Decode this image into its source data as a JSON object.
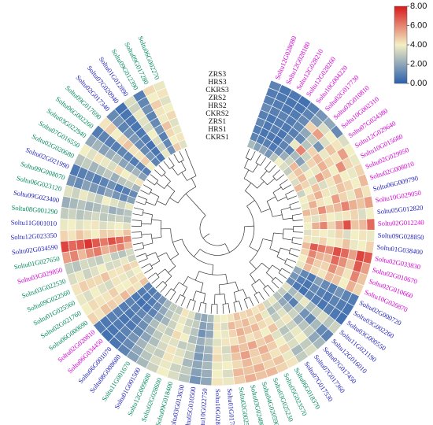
{
  "chart_data": {
    "type": "heatmap",
    "title": "",
    "layout": "circular",
    "samples": [
      "ZRS3",
      "HRS3",
      "CKRS3",
      "ZRS2",
      "HRS2",
      "CKRS2",
      "ZRS1",
      "HRS1",
      "CKRS1"
    ],
    "colorbar": {
      "range": [
        0,
        8
      ],
      "ticks": [
        "8.00",
        "6.00",
        "4.00",
        "2.00",
        "0.00"
      ],
      "colors": [
        "#2b5fad",
        "#f3efc4",
        "#d7191c"
      ]
    },
    "label_colors": {
      "magenta": "#d400d4",
      "blue": "#2222bb",
      "green": "#008a5c"
    },
    "genes": [
      {
        "name": "Soltu12G028080",
        "color": "magenta"
      },
      {
        "name": "Soltu12G028180",
        "color": "magenta"
      },
      {
        "name": "Soltu12G028210",
        "color": "magenta"
      },
      {
        "name": "Soltu12G028260",
        "color": "magenta"
      },
      {
        "name": "Soltu10G004220",
        "color": "magenta"
      },
      {
        "name": "Soltu02G017730",
        "color": "magenta"
      },
      {
        "name": "Soltu03G010810",
        "color": "magenta"
      },
      {
        "name": "Soltu10G002310",
        "color": "magenta"
      },
      {
        "name": "Soltu07G024380",
        "color": "magenta"
      },
      {
        "name": "Soltu12G029640",
        "color": "magenta"
      },
      {
        "name": "Soltu10G015680",
        "color": "magenta"
      },
      {
        "name": "Soltu02G029950",
        "color": "magenta"
      },
      {
        "name": "Soltu02G008010",
        "color": "magenta"
      },
      {
        "name": "Soltu06G009790",
        "color": "blue"
      },
      {
        "name": "Soltu10G029050",
        "color": "magenta"
      },
      {
        "name": "Soltu05G012820",
        "color": "blue"
      },
      {
        "name": "Soltu02G012240",
        "color": "magenta"
      },
      {
        "name": "Soltu09G028850",
        "color": "blue"
      },
      {
        "name": "Soltu01G038400",
        "color": "blue"
      },
      {
        "name": "Soltu02G033830",
        "color": "magenta"
      },
      {
        "name": "Soltu02G010670",
        "color": "magenta"
      },
      {
        "name": "Soltu02G010660",
        "color": "magenta"
      },
      {
        "name": "Soltu10G026870",
        "color": "magenta"
      },
      {
        "name": "Soltu02G000720",
        "color": "blue"
      },
      {
        "name": "Soltu03G002260",
        "color": "blue"
      },
      {
        "name": "Soltu03G000550",
        "color": "blue"
      },
      {
        "name": "Soltu11G021190",
        "color": "blue"
      },
      {
        "name": "Soltu12G016010",
        "color": "blue"
      },
      {
        "name": "Soltu07G017450",
        "color": "blue"
      },
      {
        "name": "Soltu07G017360",
        "color": "blue"
      },
      {
        "name": "Soltu07G017530",
        "color": "blue"
      },
      {
        "name": "Soltu06G018370",
        "color": "green"
      },
      {
        "name": "Soltu05G023570",
        "color": "green"
      },
      {
        "name": "Soltu03G025230",
        "color": "green"
      },
      {
        "name": "Soltu04G020590",
        "color": "green"
      },
      {
        "name": "Soltu03G024860",
        "color": "green"
      },
      {
        "name": "Soltu02G002540",
        "color": "green"
      },
      {
        "name": "Soltu01G017860",
        "color": "blue"
      },
      {
        "name": "Soltu10G028990",
        "color": "blue"
      },
      {
        "name": "Soltu10G022750",
        "color": "blue"
      },
      {
        "name": "Soltu05G010500",
        "color": "blue"
      },
      {
        "name": "Soltu03G013630",
        "color": "blue"
      },
      {
        "name": "Soltu09G018400",
        "color": "green"
      },
      {
        "name": "Soltu02G028600",
        "color": "green"
      },
      {
        "name": "Soltu12G009600",
        "color": "green"
      },
      {
        "name": "Soltu01G001500",
        "color": "blue"
      },
      {
        "name": "Soltu11G001670",
        "color": "green"
      },
      {
        "name": "Soltu08G008680",
        "color": "blue"
      },
      {
        "name": "Soltu06G001070",
        "color": "blue"
      },
      {
        "name": "Soltu06G034450",
        "color": "magenta"
      },
      {
        "name": "Soltu02G020810",
        "color": "magenta"
      },
      {
        "name": "Soltu06G000690",
        "color": "green"
      },
      {
        "name": "Soltu02G021760",
        "color": "green"
      },
      {
        "name": "Soltu01G025560",
        "color": "green"
      },
      {
        "name": "Soltu09G022560",
        "color": "green"
      },
      {
        "name": "Soltu03G022530",
        "color": "green"
      },
      {
        "name": "Soltu03G029850",
        "color": "magenta"
      },
      {
        "name": "Soltu01G027650",
        "color": "green"
      },
      {
        "name": "Soltu02G034590",
        "color": "blue"
      },
      {
        "name": "Soltu12G023350",
        "color": "blue"
      },
      {
        "name": "Soltu11G001010",
        "color": "blue"
      },
      {
        "name": "Soltu08G001290",
        "color": "green"
      },
      {
        "name": "Soltu09G023400",
        "color": "blue"
      },
      {
        "name": "Soltu06G023120",
        "color": "green"
      },
      {
        "name": "Soltu09G008070",
        "color": "green"
      },
      {
        "name": "Soltu02G021990",
        "color": "blue"
      },
      {
        "name": "Soltu02G020680",
        "color": "green"
      },
      {
        "name": "Soltu07G016550",
        "color": "green"
      },
      {
        "name": "Soltu03G022940",
        "color": "green"
      },
      {
        "name": "Soltu06G002260",
        "color": "green"
      },
      {
        "name": "Soltu09G017690",
        "color": "green"
      },
      {
        "name": "Soltu02G017340",
        "color": "blue"
      },
      {
        "name": "Soltu07G020940",
        "color": "blue"
      },
      {
        "name": "Soltu01G012890",
        "color": "blue"
      },
      {
        "name": "Soltu09G012390",
        "color": "green"
      },
      {
        "name": "Soltu09G017280",
        "color": "green"
      },
      {
        "name": "Soltu06G002270",
        "color": "green"
      }
    ],
    "values": [
      [
        1.0,
        0.8,
        0.9,
        1.2,
        0.9,
        1.1,
        0.8,
        1.0,
        2.5
      ],
      [
        0.6,
        0.7,
        0.8,
        0.9,
        0.6,
        0.7,
        0.6,
        0.8,
        1.8
      ],
      [
        0.7,
        0.6,
        0.7,
        1.0,
        0.8,
        0.9,
        0.7,
        0.9,
        2.0
      ],
      [
        0.5,
        0.6,
        0.8,
        0.8,
        0.7,
        0.6,
        0.5,
        0.7,
        1.5
      ],
      [
        0.9,
        1.0,
        1.2,
        1.1,
        0.9,
        1.3,
        1.0,
        1.2,
        2.8
      ],
      [
        1.5,
        1.8,
        4.5,
        2.0,
        1.2,
        3.8,
        1.0,
        2.2,
        4.0
      ],
      [
        2.0,
        3.5,
        5.5,
        3.0,
        2.8,
        6.0,
        2.5,
        3.2,
        3.5
      ],
      [
        1.2,
        4.0,
        3.5,
        1.5,
        4.5,
        3.2,
        1.8,
        5.0,
        3.0
      ],
      [
        3.5,
        4.2,
        4.8,
        3.8,
        5.0,
        4.5,
        3.2,
        4.8,
        4.2
      ],
      [
        4.0,
        5.5,
        4.2,
        4.5,
        5.2,
        3.8,
        4.0,
        5.0,
        3.5
      ],
      [
        3.8,
        4.5,
        5.8,
        4.0,
        4.8,
        5.5,
        3.5,
        4.5,
        5.0
      ],
      [
        4.5,
        3.8,
        4.0,
        5.0,
        4.2,
        3.5,
        4.8,
        4.0,
        3.2
      ],
      [
        5.0,
        4.0,
        4.5,
        4.8,
        3.8,
        4.2,
        5.2,
        4.5,
        4.0
      ],
      [
        4.2,
        5.0,
        3.8,
        4.5,
        5.5,
        4.0,
        4.2,
        5.2,
        3.8
      ],
      [
        5.5,
        4.8,
        5.2,
        6.0,
        5.0,
        4.8,
        5.8,
        4.6,
        5.0
      ],
      [
        4.0,
        3.5,
        4.5,
        4.2,
        3.8,
        4.0,
        4.5,
        3.6,
        4.2
      ],
      [
        6.5,
        5.0,
        4.8,
        7.0,
        5.5,
        4.5,
        6.0,
        5.2,
        4.0
      ],
      [
        3.8,
        4.2,
        4.0,
        3.5,
        4.5,
        3.8,
        4.0,
        4.2,
        3.6
      ],
      [
        4.5,
        4.0,
        3.8,
        4.8,
        4.2,
        4.0,
        4.5,
        3.8,
        4.2
      ],
      [
        6.8,
        7.2,
        5.5,
        6.5,
        7.0,
        5.8,
        6.2,
        6.8,
        5.0
      ],
      [
        5.5,
        6.8,
        4.8,
        5.8,
        6.5,
        5.0,
        5.2,
        6.0,
        4.5
      ],
      [
        4.8,
        6.0,
        4.2,
        5.0,
        5.8,
        4.5,
        4.6,
        5.5,
        4.0
      ],
      [
        4.5,
        5.2,
        4.0,
        4.8,
        5.0,
        4.2,
        4.4,
        5.0,
        3.8
      ],
      [
        0.8,
        1.0,
        1.5,
        0.9,
        1.2,
        1.8,
        0.7,
        1.1,
        2.0
      ],
      [
        0.6,
        0.8,
        1.0,
        0.7,
        0.9,
        1.2,
        0.6,
        0.8,
        1.5
      ],
      [
        0.5,
        0.7,
        0.9,
        0.6,
        0.8,
        1.0,
        0.5,
        0.7,
        1.2
      ],
      [
        3.2,
        2.8,
        3.5,
        3.0,
        2.6,
        3.8,
        3.0,
        2.5,
        3.6
      ],
      [
        1.0,
        1.2,
        2.5,
        1.1,
        1.4,
        2.8,
        0.9,
        1.3,
        3.0
      ],
      [
        2.5,
        2.0,
        3.0,
        2.8,
        2.2,
        3.2,
        2.4,
        2.0,
        2.8
      ],
      [
        3.5,
        3.0,
        4.0,
        3.8,
        3.2,
        4.2,
        3.6,
        3.0,
        3.8
      ],
      [
        3.0,
        2.5,
        3.5,
        3.2,
        2.8,
        3.6,
        3.0,
        2.6,
        3.4
      ],
      [
        4.2,
        3.8,
        4.5,
        4.0,
        3.6,
        4.8,
        4.2,
        3.8,
        4.5
      ],
      [
        4.5,
        4.8,
        4.2,
        4.6,
        5.0,
        4.0,
        4.4,
        4.8,
        4.2
      ],
      [
        5.0,
        4.5,
        4.8,
        5.2,
        4.6,
        4.5,
        5.0,
        4.4,
        4.6
      ],
      [
        4.8,
        5.2,
        4.5,
        4.6,
        5.4,
        4.2,
        4.8,
        5.0,
        4.4
      ],
      [
        5.2,
        4.8,
        5.0,
        5.5,
        4.8,
        4.8,
        5.2,
        4.6,
        4.8
      ],
      [
        4.6,
        5.0,
        4.4,
        4.8,
        5.2,
        4.2,
        4.5,
        5.0,
        4.2
      ],
      [
        3.8,
        3.5,
        4.0,
        3.6,
        3.4,
        4.2,
        3.8,
        3.5,
        4.0
      ],
      [
        4.2,
        4.0,
        3.8,
        4.4,
        4.2,
        3.6,
        4.0,
        4.2,
        3.8
      ],
      [
        2.0,
        2.2,
        2.5,
        2.2,
        2.4,
        2.8,
        2.0,
        2.2,
        2.6
      ],
      [
        1.5,
        1.8,
        2.0,
        1.6,
        1.9,
        2.2,
        1.4,
        1.8,
        2.0
      ],
      [
        2.8,
        3.0,
        2.5,
        3.0,
        3.2,
        2.6,
        2.8,
        3.0,
        2.4
      ],
      [
        3.5,
        3.2,
        3.8,
        3.6,
        3.0,
        4.0,
        3.4,
        3.2,
        3.6
      ],
      [
        4.0,
        3.8,
        4.2,
        4.2,
        3.6,
        4.4,
        4.0,
        3.8,
        4.2
      ],
      [
        3.2,
        3.5,
        3.0,
        3.4,
        3.6,
        3.0,
        3.2,
        3.4,
        3.0
      ],
      [
        2.5,
        2.8,
        3.2,
        2.6,
        2.9,
        3.4,
        2.4,
        2.8,
        3.0
      ],
      [
        1.8,
        2.0,
        2.4,
        1.9,
        2.2,
        2.6,
        1.8,
        2.0,
        2.4
      ],
      [
        1.0,
        1.2,
        1.5,
        1.1,
        1.3,
        1.6,
        1.0,
        1.2,
        1.5
      ],
      [
        0.6,
        0.8,
        1.0,
        0.7,
        0.9,
        1.1,
        0.6,
        0.8,
        1.0
      ],
      [
        0.5,
        0.6,
        0.8,
        0.6,
        0.7,
        0.9,
        0.5,
        0.6,
        0.8
      ],
      [
        0.8,
        0.7,
        0.9,
        0.9,
        0.8,
        1.0,
        0.7,
        0.8,
        1.0
      ],
      [
        4.5,
        4.2,
        4.8,
        4.6,
        4.4,
        5.0,
        4.5,
        4.2,
        4.8
      ],
      [
        4.0,
        4.4,
        4.2,
        4.2,
        4.6,
        4.0,
        4.0,
        4.4,
        4.2
      ],
      [
        3.8,
        3.5,
        4.0,
        3.6,
        3.4,
        4.2,
        3.8,
        3.6,
        4.0
      ],
      [
        4.2,
        4.6,
        4.4,
        4.4,
        4.8,
        4.2,
        4.2,
        4.6,
        4.4
      ],
      [
        3.5,
        3.8,
        3.2,
        3.6,
        4.0,
        3.4,
        3.5,
        3.8,
        3.2
      ],
      [
        3.0,
        2.8,
        3.4,
        3.2,
        3.0,
        3.6,
        3.0,
        2.8,
        3.4
      ],
      [
        5.5,
        6.0,
        5.0,
        5.8,
        6.2,
        5.2,
        5.5,
        6.0,
        5.0
      ],
      [
        7.2,
        6.5,
        6.8,
        7.5,
        6.8,
        6.2,
        7.0,
        6.5,
        6.0
      ],
      [
        4.5,
        4.2,
        4.8,
        4.4,
        4.0,
        4.6,
        4.5,
        4.2,
        4.8
      ],
      [
        3.8,
        4.0,
        3.6,
        3.9,
        4.2,
        3.5,
        3.8,
        4.0,
        3.6
      ],
      [
        3.0,
        3.2,
        2.8,
        3.1,
        3.4,
        2.9,
        3.0,
        3.2,
        2.8
      ],
      [
        2.2,
        2.5,
        2.8,
        2.4,
        2.6,
        3.0,
        2.2,
        2.5,
        2.8
      ],
      [
        3.6,
        3.2,
        3.8,
        3.4,
        3.0,
        4.0,
        3.6,
        3.2,
        3.8
      ],
      [
        1.5,
        1.2,
        1.8,
        1.6,
        1.3,
        2.0,
        1.5,
        1.2,
        1.8
      ],
      [
        0.7,
        0.9,
        1.2,
        0.8,
        1.0,
        1.4,
        0.7,
        0.9,
        1.2
      ],
      [
        2.8,
        3.0,
        2.4,
        2.6,
        2.9,
        2.2,
        2.8,
        3.0,
        2.4
      ],
      [
        4.0,
        3.6,
        4.2,
        3.8,
        3.5,
        4.4,
        4.0,
        3.6,
        4.2
      ],
      [
        2.0,
        2.4,
        1.8,
        2.2,
        2.6,
        1.9,
        2.0,
        2.4,
        1.8
      ],
      [
        0.8,
        1.0,
        0.9,
        0.9,
        1.1,
        1.0,
        0.8,
        1.0,
        0.9
      ],
      [
        4.2,
        4.6,
        4.0,
        4.4,
        4.8,
        4.2,
        4.2,
        4.6,
        4.0
      ],
      [
        1.2,
        1.5,
        1.0,
        1.4,
        1.6,
        1.2,
        1.2,
        1.5,
        1.0
      ],
      [
        0.5,
        0.6,
        0.7,
        0.6,
        0.7,
        0.8,
        0.5,
        0.6,
        0.7
      ],
      [
        3.5,
        3.2,
        3.8,
        3.6,
        3.4,
        4.0,
        3.5,
        3.2,
        3.8
      ],
      [
        0.9,
        1.1,
        1.4,
        1.0,
        1.2,
        1.5,
        0.9,
        1.1,
        1.4
      ],
      [
        4.4,
        4.0,
        4.6,
        4.2,
        3.9,
        4.8,
        4.4,
        4.0,
        4.6
      ],
      [
        3.8,
        4.2,
        3.6,
        4.0,
        4.4,
        3.6,
        3.8,
        4.2,
        3.6
      ]
    ]
  }
}
